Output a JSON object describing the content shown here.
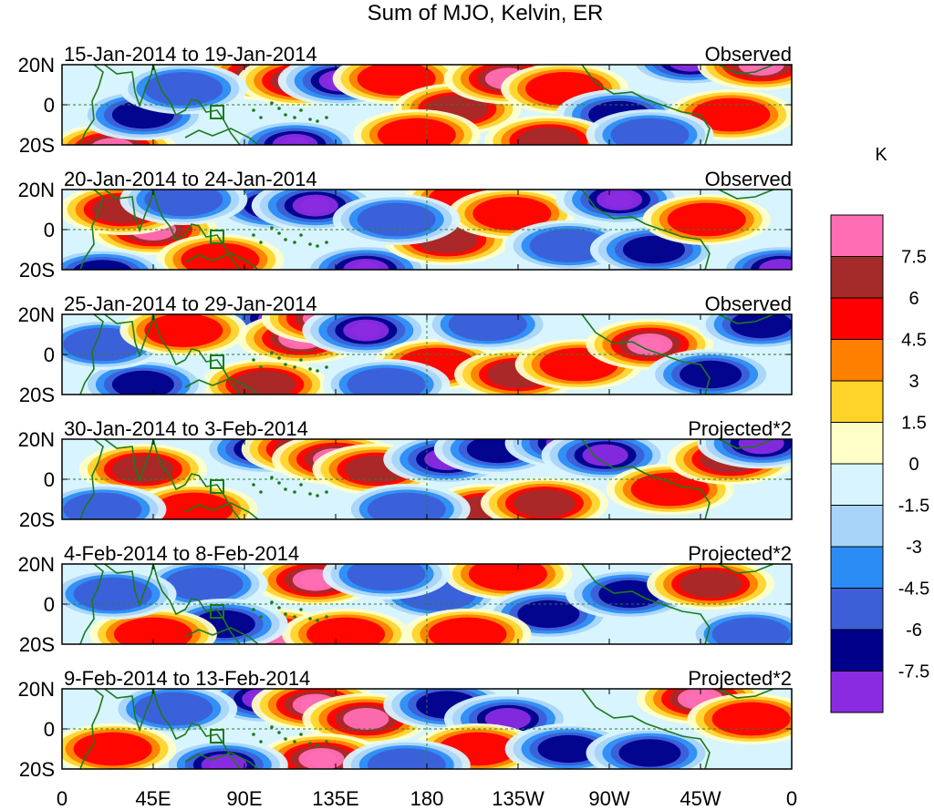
{
  "title": "Sum of MJO, Kelvin, ER",
  "lat_labels": [
    "20N",
    "0",
    "20S"
  ],
  "lon_labels": [
    "0",
    "45E",
    "90E",
    "135E",
    "180",
    "135W",
    "90W",
    "45W",
    "0"
  ],
  "colorbar": {
    "unit": "K",
    "levels": [
      "7.5",
      "6",
      "4.5",
      "3",
      "1.5",
      "0",
      "-1.5",
      "-3",
      "-4.5",
      "-6",
      "-7.5"
    ],
    "colors": [
      "#ff6eb4",
      "#a52a2a",
      "#ff0000",
      "#ff7f00",
      "#ffd42a",
      "#ffffc8",
      "#d8f4ff",
      "#a8d4fa",
      "#2b8cf5",
      "#3c5fd8",
      "#00008b",
      "#8a2be2"
    ]
  },
  "panels": [
    {
      "date": "15-Jan-2014 to 19-Jan-2014",
      "status": "Observed"
    },
    {
      "date": "20-Jan-2014 to 24-Jan-2014",
      "status": "Observed"
    },
    {
      "date": "25-Jan-2014 to 29-Jan-2014",
      "status": "Observed"
    },
    {
      "date": "30-Jan-2014 to 3-Feb-2014",
      "status": "Projected*2"
    },
    {
      "date": "4-Feb-2014 to 8-Feb-2014",
      "status": "Projected*2"
    },
    {
      "date": "9-Feb-2014 to 13-Feb-2014",
      "status": "Projected*2"
    }
  ],
  "anomalies": [
    [
      {
        "lon": 100,
        "lat": 15,
        "v": 4
      },
      {
        "lon": 118,
        "lat": 12,
        "v": 6
      },
      {
        "lon": 138,
        "lat": 12,
        "v": -8
      },
      {
        "lon": 165,
        "lat": 13,
        "v": 3
      },
      {
        "lon": 195,
        "lat": -2,
        "v": 4
      },
      {
        "lon": 220,
        "lat": 13,
        "v": 5
      },
      {
        "lon": 248,
        "lat": 8,
        "v": 3
      },
      {
        "lon": 275,
        "lat": -5,
        "v": -4
      },
      {
        "lon": 310,
        "lat": 22,
        "v": -7
      },
      {
        "lon": 345,
        "lat": 20,
        "v": 6
      },
      {
        "lon": 25,
        "lat": -22,
        "v": 5
      },
      {
        "lon": 40,
        "lat": -5,
        "v": -4
      },
      {
        "lon": 115,
        "lat": -20,
        "v": -6
      },
      {
        "lon": 60,
        "lat": 8,
        "v": -3
      },
      {
        "lon": 240,
        "lat": -18,
        "v": 4
      },
      {
        "lon": 330,
        "lat": -5,
        "v": 3
      },
      {
        "lon": 290,
        "lat": -15,
        "v": -3
      },
      {
        "lon": 175,
        "lat": -15,
        "v": 3
      }
    ],
    [
      {
        "lon": 45,
        "lat": 0,
        "v": 5
      },
      {
        "lon": 78,
        "lat": -15,
        "v": 3
      },
      {
        "lon": 105,
        "lat": 12,
        "v": -5
      },
      {
        "lon": 125,
        "lat": 12,
        "v": -8
      },
      {
        "lon": 150,
        "lat": -20,
        "v": -6
      },
      {
        "lon": 190,
        "lat": -5,
        "v": 4
      },
      {
        "lon": 200,
        "lat": 15,
        "v": 3
      },
      {
        "lon": 222,
        "lat": 8,
        "v": 3
      },
      {
        "lon": 250,
        "lat": -8,
        "v": -3
      },
      {
        "lon": 275,
        "lat": 15,
        "v": -7
      },
      {
        "lon": 292,
        "lat": -10,
        "v": -4
      },
      {
        "lon": 318,
        "lat": 5,
        "v": 3
      },
      {
        "lon": 355,
        "lat": -20,
        "v": -5
      },
      {
        "lon": 20,
        "lat": -22,
        "v": -4
      },
      {
        "lon": 30,
        "lat": 10,
        "v": 4
      },
      {
        "lon": 165,
        "lat": 5,
        "v": -3
      },
      {
        "lon": 60,
        "lat": 15,
        "v": -3
      }
    ],
    [
      {
        "lon": 108,
        "lat": 18,
        "v": -6
      },
      {
        "lon": 118,
        "lat": 8,
        "v": 7
      },
      {
        "lon": 130,
        "lat": 18,
        "v": 5
      },
      {
        "lon": 150,
        "lat": 12,
        "v": -7
      },
      {
        "lon": 100,
        "lat": -15,
        "v": 4
      },
      {
        "lon": 40,
        "lat": -15,
        "v": -4
      },
      {
        "lon": 20,
        "lat": 5,
        "v": -3
      },
      {
        "lon": 60,
        "lat": 12,
        "v": 3
      },
      {
        "lon": 185,
        "lat": -5,
        "v": 3
      },
      {
        "lon": 225,
        "lat": -10,
        "v": 4
      },
      {
        "lon": 255,
        "lat": -5,
        "v": 3
      },
      {
        "lon": 290,
        "lat": 5,
        "v": 6
      },
      {
        "lon": 320,
        "lat": -10,
        "v": -4
      },
      {
        "lon": 345,
        "lat": 15,
        "v": -4
      },
      {
        "lon": 210,
        "lat": 15,
        "v": -3
      },
      {
        "lon": 160,
        "lat": -15,
        "v": -3
      }
    ],
    [
      {
        "lon": 40,
        "lat": 5,
        "v": 4
      },
      {
        "lon": 65,
        "lat": -15,
        "v": 3
      },
      {
        "lon": 100,
        "lat": 15,
        "v": -4
      },
      {
        "lon": 120,
        "lat": 15,
        "v": 7
      },
      {
        "lon": 135,
        "lat": 10,
        "v": 5
      },
      {
        "lon": 155,
        "lat": 5,
        "v": 4
      },
      {
        "lon": 190,
        "lat": 10,
        "v": -5
      },
      {
        "lon": 215,
        "lat": 15,
        "v": -4
      },
      {
        "lon": 250,
        "lat": 18,
        "v": -6
      },
      {
        "lon": 268,
        "lat": 12,
        "v": -5
      },
      {
        "lon": 210,
        "lat": -15,
        "v": 4
      },
      {
        "lon": 238,
        "lat": -12,
        "v": 4
      },
      {
        "lon": 300,
        "lat": -5,
        "v": 3
      },
      {
        "lon": 330,
        "lat": 10,
        "v": 4
      },
      {
        "lon": 345,
        "lat": 18,
        "v": -5
      },
      {
        "lon": 20,
        "lat": -15,
        "v": -3
      },
      {
        "lon": 170,
        "lat": -15,
        "v": -3
      }
    ],
    [
      {
        "lon": 125,
        "lat": 12,
        "v": 6
      },
      {
        "lon": 105,
        "lat": -15,
        "v": 5
      },
      {
        "lon": 140,
        "lat": -15,
        "v": 3
      },
      {
        "lon": 70,
        "lat": 10,
        "v": -3
      },
      {
        "lon": 80,
        "lat": -10,
        "v": -4
      },
      {
        "lon": 185,
        "lat": 5,
        "v": -3
      },
      {
        "lon": 220,
        "lat": 15,
        "v": 3
      },
      {
        "lon": 240,
        "lat": -5,
        "v": -4
      },
      {
        "lon": 280,
        "lat": 5,
        "v": -4
      },
      {
        "lon": 320,
        "lat": 10,
        "v": 4
      },
      {
        "lon": 340,
        "lat": -15,
        "v": -3
      },
      {
        "lon": 45,
        "lat": -15,
        "v": 3
      },
      {
        "lon": 25,
        "lat": 5,
        "v": -3
      },
      {
        "lon": 160,
        "lat": 15,
        "v": -3
      },
      {
        "lon": 200,
        "lat": -15,
        "v": 3
      }
    ],
    [
      {
        "lon": 100,
        "lat": 15,
        "v": -6
      },
      {
        "lon": 125,
        "lat": 12,
        "v": 7
      },
      {
        "lon": 150,
        "lat": 5,
        "v": 5
      },
      {
        "lon": 128,
        "lat": -15,
        "v": 6
      },
      {
        "lon": 80,
        "lat": -18,
        "v": -6
      },
      {
        "lon": 55,
        "lat": 10,
        "v": -3
      },
      {
        "lon": 25,
        "lat": -10,
        "v": 3
      },
      {
        "lon": 190,
        "lat": 12,
        "v": -4
      },
      {
        "lon": 220,
        "lat": 5,
        "v": -5
      },
      {
        "lon": 205,
        "lat": -10,
        "v": 3
      },
      {
        "lon": 250,
        "lat": -10,
        "v": -4
      },
      {
        "lon": 290,
        "lat": -12,
        "v": -4
      },
      {
        "lon": 315,
        "lat": 15,
        "v": 6
      },
      {
        "lon": 340,
        "lat": 5,
        "v": 3
      },
      {
        "lon": 170,
        "lat": -18,
        "v": -3
      }
    ]
  ]
}
